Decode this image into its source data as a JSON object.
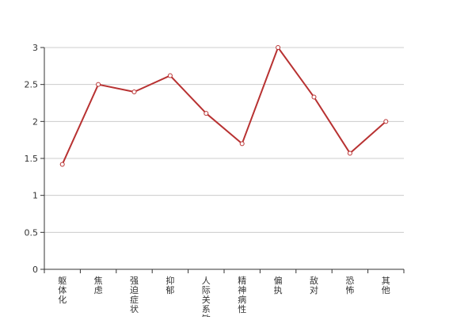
{
  "chart_data": {
    "type": "line",
    "categories": [
      "躯体化",
      "焦虑",
      "强迫症状",
      "抑郁",
      "人际关系敏感",
      "精神病性",
      "偏执",
      "敌对",
      "恐怖",
      "其他"
    ],
    "series": [
      {
        "values": [
          1.42,
          2.5,
          2.4,
          2.62,
          2.11,
          1.7,
          3.0,
          2.33,
          1.57,
          2.0
        ]
      }
    ],
    "ylim": [
      0,
      3
    ],
    "yticks": [
      "0",
      "0.5",
      "1",
      "1.5",
      "2",
      "2.5",
      "3"
    ],
    "grid": true,
    "line_color": "#b83232",
    "marker_fill": "#ffffff"
  }
}
